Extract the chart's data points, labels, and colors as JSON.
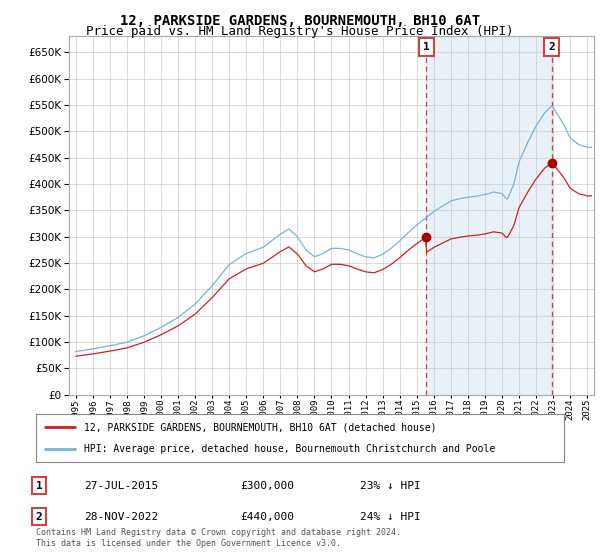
{
  "title": "12, PARKSIDE GARDENS, BOURNEMOUTH, BH10 6AT",
  "subtitle": "Price paid vs. HM Land Registry's House Price Index (HPI)",
  "legend_line1": "12, PARKSIDE GARDENS, BOURNEMOUTH, BH10 6AT (detached house)",
  "legend_line2": "HPI: Average price, detached house, Bournemouth Christchurch and Poole",
  "footnote": "Contains HM Land Registry data © Crown copyright and database right 2024.\nThis data is licensed under the Open Government Licence v3.0.",
  "transaction1_date": "27-JUL-2015",
  "transaction1_price": "£300,000",
  "transaction1_hpi": "23% ↓ HPI",
  "transaction2_date": "28-NOV-2022",
  "transaction2_price": "£440,000",
  "transaction2_hpi": "24% ↓ HPI",
  "t1_x": 2015.57,
  "t1_y": 300000,
  "t2_x": 2022.92,
  "t2_y": 440000,
  "ylim_top": 680000,
  "yticks": [
    0,
    50000,
    100000,
    150000,
    200000,
    250000,
    300000,
    350000,
    400000,
    450000,
    500000,
    550000,
    600000,
    650000
  ],
  "xlim_left": 1994.6,
  "xlim_right": 2025.4,
  "hpi_color": "#7ab3d4",
  "hpi_fill_color": "#ddeeff",
  "price_color": "#cc2222",
  "marker_color": "#aa0000",
  "dashed_color": "#cc4444",
  "background_color": "#ffffff",
  "grid_color": "#cccccc",
  "title_fontsize": 10,
  "subtitle_fontsize": 9
}
